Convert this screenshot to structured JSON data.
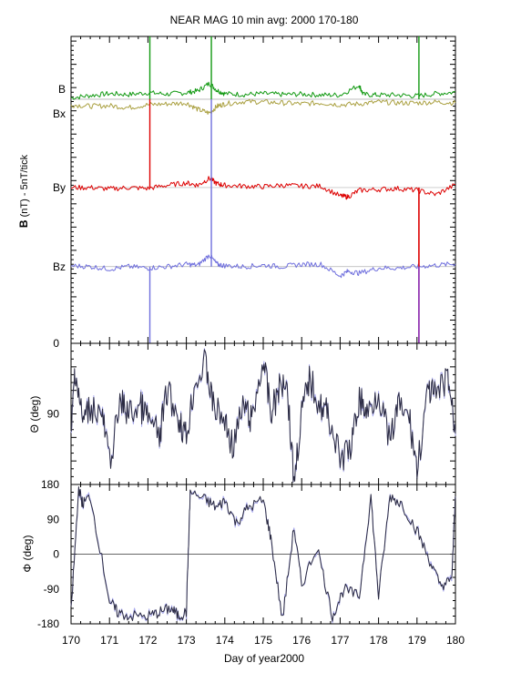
{
  "title": "NEAR MAG 10 min avg: 2000 170-180",
  "xlabel": "Day of year2000",
  "colors": {
    "B": "#119911",
    "Bx": "#aaa040",
    "By": "#dd0000",
    "Bz": "#6f6fdd",
    "angle": "#2a2a40",
    "angle_light": "#a8a8ee",
    "spike_purple": "#8822aa"
  },
  "chart_data": [
    {
      "type": "line",
      "panel": "B components",
      "ylabel_bold": "B",
      "ylabel_rest": " (nT) - 5nT/tick",
      "ytick_labels": [
        "0"
      ],
      "xlim": [
        170,
        180
      ],
      "series": [
        {
          "name": "B",
          "baseline_ticks": 52.5,
          "color": "#119911",
          "x": [
            170,
            170.5,
            171,
            171.5,
            172,
            172.5,
            173,
            173.3,
            173.6,
            173.8,
            174,
            174.5,
            175,
            175.5,
            176,
            176.5,
            177,
            177.5,
            177.6,
            178,
            178.5,
            179,
            179.5,
            180
          ],
          "y": [
            0.3,
            0.8,
            1.2,
            1.0,
            1.4,
            1.1,
            1.4,
            1.8,
            3.4,
            1.9,
            1.2,
            1.0,
            1.2,
            1.0,
            1.1,
            0.9,
            0.9,
            3.0,
            1.0,
            0.9,
            0.9,
            0.7,
            1.2,
            1.5
          ]
        },
        {
          "name": "Bx",
          "baseline_ticks": 52.5,
          "color": "#aaa040",
          "x": [
            170,
            170.5,
            171,
            171.5,
            172,
            172.5,
            173,
            173.3,
            173.6,
            173.8,
            174,
            174.5,
            175,
            175.5,
            176,
            176.5,
            177,
            177.5,
            178,
            178.5,
            179,
            179.5,
            180
          ],
          "y": [
            -1.2,
            -1.5,
            -1.4,
            -1.8,
            -1.2,
            -1.0,
            -0.8,
            -2.2,
            -3.0,
            -1.5,
            -1.0,
            -0.5,
            -0.6,
            -0.8,
            -1.0,
            -0.8,
            -1.2,
            -1.0,
            -0.6,
            -0.8,
            -0.8,
            -0.6,
            -0.8
          ]
        },
        {
          "name": "By",
          "baseline_ticks": 33.5,
          "color": "#dd0000",
          "x": [
            170,
            170.5,
            171,
            171.5,
            172,
            172.5,
            173,
            173.3,
            173.6,
            173.8,
            174,
            174.5,
            175,
            175.5,
            176,
            176.5,
            177,
            177.2,
            177.5,
            178,
            178.5,
            179,
            179.5,
            180
          ],
          "y": [
            0,
            0,
            -0.3,
            0,
            -0.2,
            0.5,
            1.0,
            0.5,
            2.0,
            0.8,
            0.5,
            0.3,
            0.2,
            0.5,
            0.3,
            0.3,
            -1.8,
            -2.0,
            -0.6,
            -0.4,
            -0.2,
            -0.6,
            -1.5,
            0.6
          ]
        },
        {
          "name": "Bz",
          "baseline_ticks": 16.5,
          "color": "#6f6fdd",
          "x": [
            170,
            170.5,
            171,
            171.5,
            172,
            172.5,
            173,
            173.3,
            173.6,
            173.8,
            174,
            174.5,
            175,
            175.5,
            176,
            176.5,
            177,
            177.2,
            177.5,
            178,
            178.5,
            179,
            179.5,
            180
          ],
          "y": [
            0.2,
            0,
            -0.5,
            0,
            -0.3,
            0,
            0.5,
            0.3,
            2.5,
            0.5,
            0.2,
            0,
            0.3,
            0,
            0.5,
            0.5,
            -2.0,
            -1.0,
            -1.4,
            -0.3,
            -0.3,
            0,
            0.3,
            0.6
          ]
        }
      ],
      "spikes": [
        {
          "x": 172.05,
          "series": "B",
          "to": "top"
        },
        {
          "x": 172.05,
          "series": "By",
          "to": "B"
        },
        {
          "x": 172.05,
          "series": "Bz",
          "to": "bottom"
        },
        {
          "x": 173.65,
          "series": "B",
          "to": "top"
        },
        {
          "x": 173.65,
          "series": "Bz",
          "to": "B"
        },
        {
          "x": 179.05,
          "series": "B",
          "to": "top"
        },
        {
          "x": 179.05,
          "series": "By",
          "to": "bottom"
        }
      ]
    },
    {
      "type": "line",
      "panel": "Theta",
      "ylabel": "Θ (deg)",
      "ylim": [
        0,
        180
      ],
      "inverted": true,
      "ytick_labels": [
        {
          "value": 90,
          "label": "90"
        }
      ],
      "x": [
        170,
        170.1,
        170.3,
        170.5,
        170.8,
        171,
        171.3,
        171.5,
        171.8,
        172,
        172.3,
        172.5,
        172.8,
        173,
        173.2,
        173.5,
        173.7,
        174,
        174.2,
        174.5,
        174.7,
        175,
        175.2,
        175.4,
        175.6,
        175.8,
        176,
        176.2,
        176.5,
        176.7,
        177,
        177.3,
        177.5,
        177.7,
        178,
        178.3,
        178.5,
        178.8,
        179,
        179.3,
        179.5,
        179.8,
        180
      ],
      "y": [
        120,
        30,
        100,
        80,
        90,
        150,
        75,
        90,
        80,
        95,
        120,
        60,
        95,
        120,
        55,
        25,
        80,
        100,
        130,
        80,
        100,
        20,
        90,
        60,
        40,
        175,
        90,
        45,
        80,
        90,
        150,
        130,
        70,
        90,
        60,
        130,
        80,
        95,
        160,
        60,
        70,
        40,
        115
      ]
    },
    {
      "type": "line",
      "panel": "Phi",
      "ylabel": "Φ (deg)",
      "ylim": [
        -180,
        180
      ],
      "ytick_labels": [
        {
          "value": 180,
          "label": "180"
        },
        {
          "value": 90,
          "label": "90"
        },
        {
          "value": 0,
          "label": "0"
        },
        {
          "value": -90,
          "label": "-90"
        },
        {
          "value": -180,
          "label": "-180"
        }
      ],
      "zero_line": true,
      "x": [
        170,
        170.2,
        170.3,
        170.5,
        171,
        171.2,
        171.5,
        172,
        172.3,
        172.6,
        172.8,
        173,
        173.1,
        173.5,
        173.8,
        174,
        174.3,
        174.6,
        175,
        175.2,
        175.5,
        175.8,
        176,
        176.4,
        176.8,
        177.1,
        177.5,
        177.8,
        178,
        178.3,
        178.6,
        179,
        179.3,
        179.6,
        179.9,
        180
      ],
      "y": [
        -150,
        170,
        130,
        150,
        -120,
        -150,
        -160,
        -160,
        -150,
        -140,
        -160,
        -150,
        160,
        140,
        120,
        140,
        80,
        120,
        140,
        40,
        -170,
        70,
        -80,
        20,
        -160,
        -90,
        -110,
        150,
        -110,
        150,
        130,
        60,
        -10,
        -80,
        -70,
        150
      ]
    }
  ],
  "xticks": [
    "170",
    "171",
    "172",
    "173",
    "174",
    "175",
    "176",
    "177",
    "178",
    "179",
    "180"
  ]
}
